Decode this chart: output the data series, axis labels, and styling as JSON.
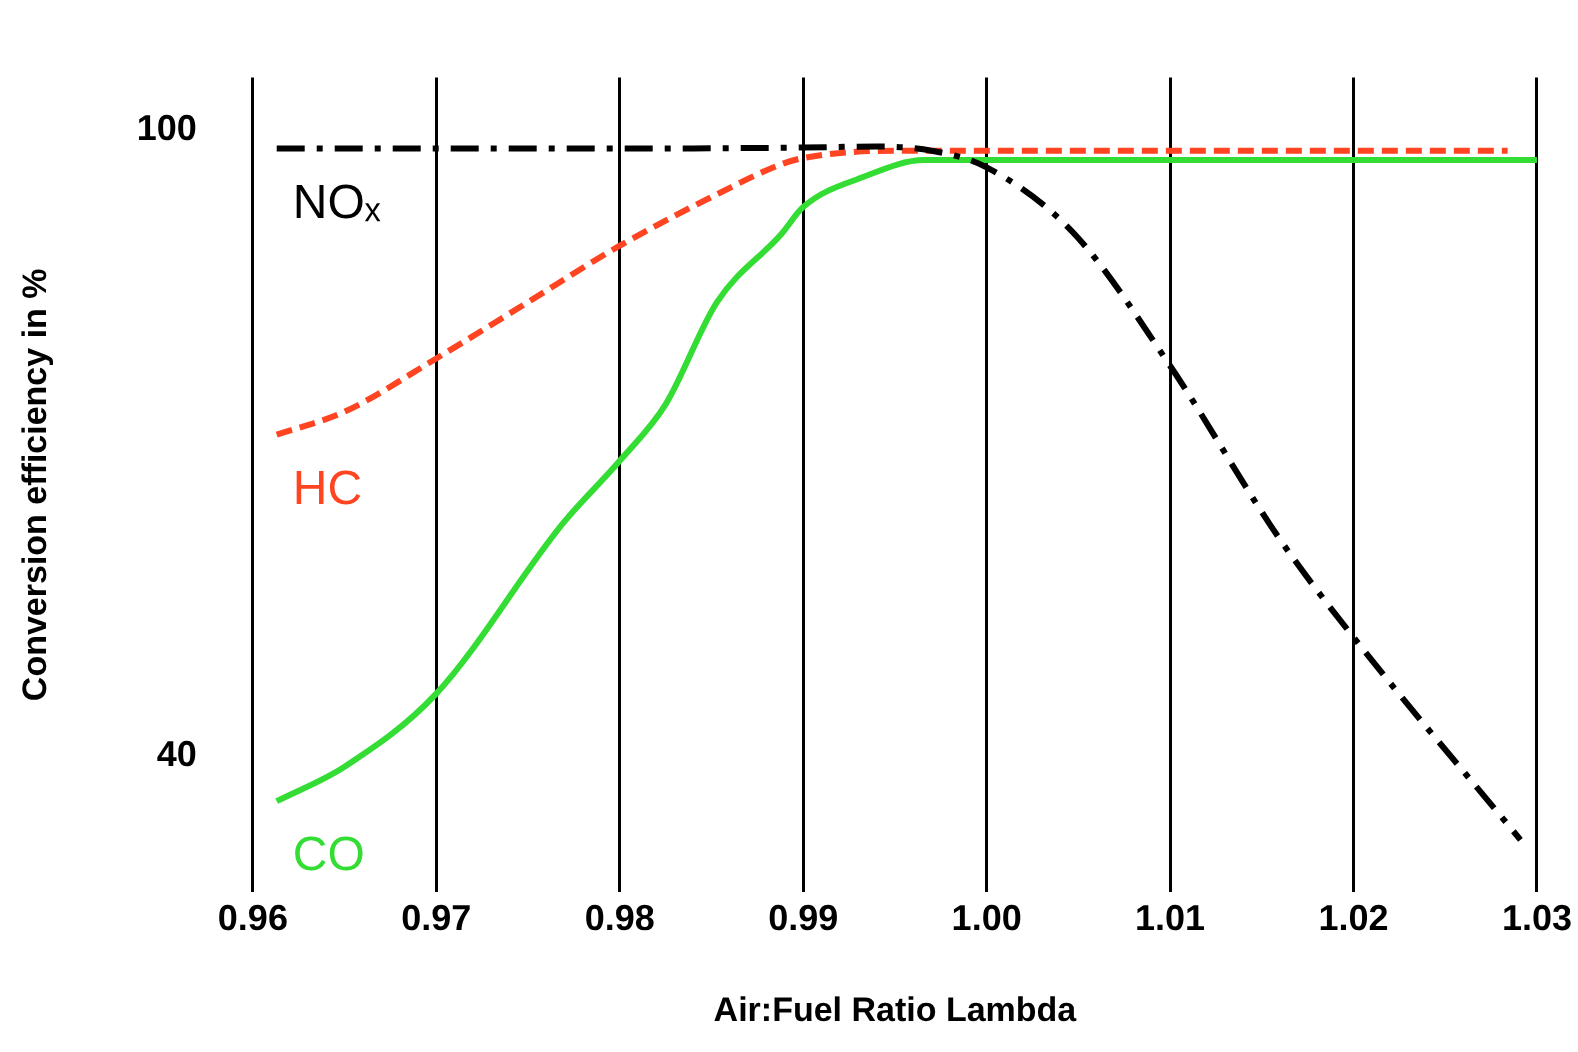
{
  "chart_data": {
    "type": "line",
    "xlabel": "Air:Fuel Ratio Lambda",
    "ylabel": "Conversion efficiency in %",
    "xlim": [
      0.96,
      1.03
    ],
    "xticks": [
      {
        "value": 0.96,
        "label": "0.96"
      },
      {
        "value": 0.97,
        "label": "0.97"
      },
      {
        "value": 0.98,
        "label": "0.98"
      },
      {
        "value": 0.99,
        "label": "0.99"
      },
      {
        "value": 1,
        "label": "1.00"
      },
      {
        "value": 1.01,
        "label": "1.01"
      },
      {
        "value": 1.02,
        "label": "1.02"
      },
      {
        "value": 1.03,
        "label": "1.03"
      }
    ],
    "ylim": [
      27,
      105
    ],
    "yticks": [
      40,
      100
    ],
    "grid": "x",
    "legend": false,
    "marker": "none",
    "series": [
      {
        "name": "NOₓ",
        "color": "#000000",
        "line_style": "dashdot",
        "x": [
          0.9613,
          0.97,
          0.98,
          0.99,
          0.994,
          0.997,
          1.0,
          1.0048,
          1.01,
          1.0159,
          1.02,
          1.0291
        ],
        "values": [
          98.2,
          98.2,
          98.2,
          98.3,
          98.4,
          98.0,
          96.4,
          90.0,
          77.4,
          61.0,
          51.4,
          32
        ]
      },
      {
        "name": "HC",
        "color": "#ff4422",
        "line_style": "dashed",
        "x": [
          0.9613,
          0.965,
          0.97,
          0.975,
          0.98,
          0.9855,
          0.9888,
          0.99,
          0.995,
          1.0,
          1.01,
          1.02,
          1.0284
        ],
        "values": [
          70.8,
          73.0,
          78.1,
          83.5,
          88.9,
          94.0,
          96.7,
          97.3,
          98.0,
          98.0,
          98.0,
          98.0,
          98.0
        ]
      },
      {
        "name": "CO",
        "color": "#33dd33",
        "line_style": "solid",
        "x": [
          0.9613,
          0.965,
          0.97,
          0.9769,
          0.98,
          0.9825,
          0.9853,
          0.9888,
          0.99,
          0.9933,
          0.9966,
          1.0,
          1.01,
          1.02,
          1.03
        ],
        "values": [
          35.7,
          39.0,
          46.0,
          62.3,
          68.3,
          73.7,
          83.5,
          90.0,
          92.6,
          95.5,
          97.1,
          97.1,
          97.1,
          97.1,
          97.1
        ]
      }
    ]
  }
}
